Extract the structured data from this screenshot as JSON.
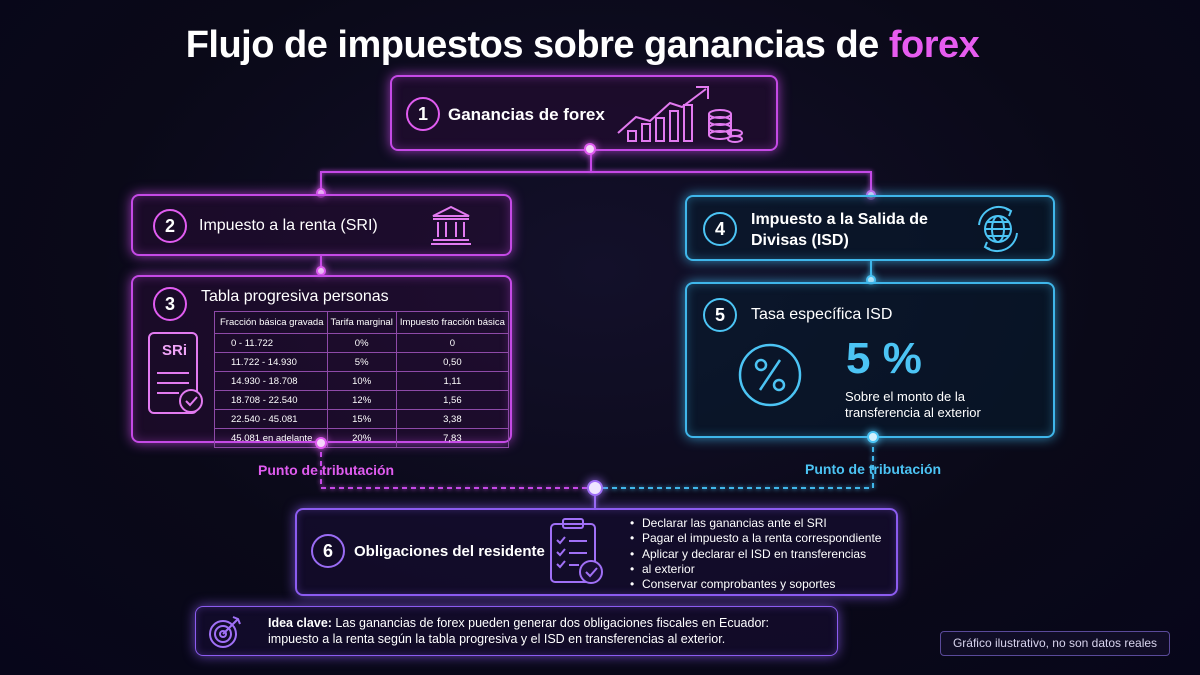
{
  "title": {
    "main": "Flujo de impuestos sobre ganancias de ",
    "highlight": "forex"
  },
  "nodes": {
    "n1": {
      "num": "1",
      "label": "Ganancias de forex"
    },
    "n2": {
      "num": "2",
      "label": "Impuesto a la renta (SRI)"
    },
    "n3": {
      "num": "3",
      "label": "Tabla progresiva personas",
      "doc_text": "SRi"
    },
    "n4": {
      "num": "4",
      "label_line1": "Impuesto a la Salida de",
      "label_line2": "Divisas (ISD)"
    },
    "n5": {
      "num": "5",
      "label": "Tasa específica ISD",
      "rate": "5 %",
      "desc_line1": "Sobre el monto de la",
      "desc_line2": "transferencia al exterior"
    },
    "n6": {
      "num": "6",
      "label": "Obligaciones del residente",
      "bullets": [
        "Declarar las ganancias ante el SRI",
        "Pagar el impuesto a la renta correspondiente",
        "Aplicar y declarar el ISD en transferencias",
        "Conservar comprobantes y soportes"
      ],
      "bullet3_cont": "al exterior"
    }
  },
  "table": {
    "headers": [
      "Fracción básica gravada",
      "Tarifa marginal",
      "Impuesto fracción básica"
    ],
    "rows": [
      [
        "0 - 11.722",
        "0%",
        "0"
      ],
      [
        "11.722 - 14.930",
        "5%",
        "0,50"
      ],
      [
        "14.930 - 18.708",
        "10%",
        "1,11"
      ],
      [
        "18.708 - 22.540",
        "12%",
        "1,56"
      ],
      [
        "22.540 - 45.081",
        "15%",
        "3,38"
      ],
      [
        "45.081 en adelante",
        "20%",
        "7,83"
      ]
    ]
  },
  "points": {
    "left": "Punto de tributación",
    "right": "Punto de tributación"
  },
  "idea": {
    "bold": "Idea clave:",
    "line1": " Las ganancias de forex pueden generar dos obligaciones fiscales en Ecuador:",
    "line2": "impuesto a la renta según la tabla progresiva y el ISD en transferencias al exterior."
  },
  "footnote": "Gráfico ilustrativo, no son datos reales",
  "icons": {
    "n1": "growth-chart-coins-icon",
    "n2": "bank-building-icon",
    "n3": "sri-document-icon",
    "n4": "globe-exchange-icon",
    "n5": "percent-icon",
    "n6": "checklist-clipboard-icon",
    "idea": "target-icon"
  },
  "colors": {
    "pink": "#c54ae6",
    "blue": "#3fb6ea",
    "violet": "#8c5cf0",
    "background": "#0a0918"
  }
}
